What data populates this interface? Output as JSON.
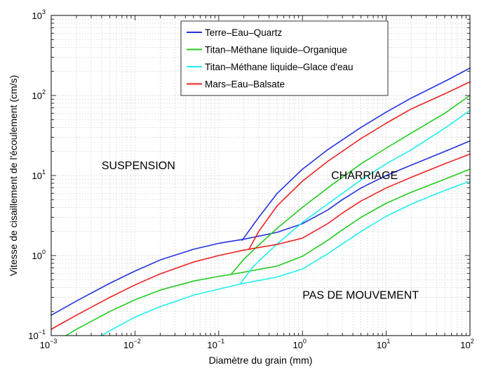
{
  "chart_data": {
    "type": "line",
    "title": "",
    "xlabel": "Diamètre du grain (mm)",
    "ylabel": "Vitesse de cisaillement de l'écoulement (cm/s)",
    "xscale": "log",
    "yscale": "log",
    "xlim": [
      0.001,
      100
    ],
    "ylim": [
      0.1,
      1000
    ],
    "grid": true,
    "legend_position": "top-center",
    "x_tick_labels": [
      {
        "base": "10",
        "exp": "−3"
      },
      {
        "base": "10",
        "exp": "−2"
      },
      {
        "base": "10",
        "exp": "−1"
      },
      {
        "base": "10",
        "exp": "0"
      },
      {
        "base": "10",
        "exp": "1"
      },
      {
        "base": "10",
        "exp": "2"
      }
    ],
    "y_tick_labels": [
      {
        "base": "10",
        "exp": "−1"
      },
      {
        "base": "10",
        "exp": "0"
      },
      {
        "base": "10",
        "exp": "1"
      },
      {
        "base": "10",
        "exp": "2"
      },
      {
        "base": "10",
        "exp": "3"
      }
    ],
    "annotations": [
      {
        "text": "SUSPENSION",
        "x": 0.004,
        "y": 12
      },
      {
        "text": "CHARRIAGE",
        "x": 2.2,
        "y": 9
      },
      {
        "text": "PAS DE MOUVEMENT",
        "x": 1.0,
        "y": 0.29
      }
    ],
    "series": [
      {
        "name": "Terre–Eau–Quartz",
        "color": "#2233dd",
        "segments": [
          {
            "x": [
              0.001,
              0.002,
              0.005,
              0.01,
              0.02,
              0.05,
              0.1,
              0.2,
              0.5,
              1.0,
              2,
              3,
              5,
              10,
              20,
              50,
              100
            ],
            "y": [
              0.18,
              0.27,
              0.45,
              0.64,
              0.88,
              1.2,
              1.42,
              1.6,
              1.95,
              2.5,
              3.7,
              5.0,
              7.0,
              10,
              13.5,
              20,
              27
            ]
          },
          {
            "x": [
              0.19,
              0.3,
              0.5,
              1.0,
              2,
              5,
              10,
              20,
              50,
              100
            ],
            "y": [
              1.55,
              3.0,
              6.0,
              12,
              21,
              40,
              62,
              93,
              150,
              220
            ]
          }
        ]
      },
      {
        "name": "Titan–Méthane liquide–Organique",
        "color": "#22cc22",
        "segments": [
          {
            "x": [
              0.0015,
              0.002,
              0.005,
              0.01,
              0.02,
              0.05,
              0.1,
              0.14,
              0.2,
              0.5,
              1.0,
              2,
              3,
              5,
              10,
              20,
              50,
              100
            ],
            "y": [
              0.1,
              0.12,
              0.2,
              0.28,
              0.37,
              0.48,
              0.55,
              0.58,
              0.62,
              0.74,
              0.98,
              1.55,
              2.1,
              3.0,
              4.5,
              6.2,
              9.0,
              12
            ]
          },
          {
            "x": [
              0.14,
              0.2,
              0.3,
              0.5,
              1.0,
              2,
              5,
              10,
              20,
              50,
              100
            ],
            "y": [
              0.58,
              0.9,
              1.35,
              2.2,
              4.0,
              7.0,
              14,
              22,
              34,
              60,
              100
            ]
          }
        ]
      },
      {
        "name": "Titan–Méthane liquide–Glace d'eau",
        "color": "#22eeee",
        "segments": [
          {
            "x": [
              0.004,
              0.005,
              0.01,
              0.02,
              0.05,
              0.1,
              0.18,
              0.2,
              0.5,
              1.0,
              2,
              3,
              5,
              10,
              20,
              50,
              100
            ],
            "y": [
              0.1,
              0.115,
              0.17,
              0.23,
              0.32,
              0.38,
              0.44,
              0.45,
              0.54,
              0.68,
              1.05,
              1.4,
              2.0,
              3.1,
              4.4,
              6.5,
              8.5
            ]
          },
          {
            "x": [
              0.18,
              0.25,
              0.3,
              0.5,
              1.0,
              2,
              5,
              10,
              20,
              50,
              100
            ],
            "y": [
              0.44,
              0.7,
              0.85,
              1.4,
              2.6,
              4.4,
              8.8,
              14,
              21,
              39,
              65
            ]
          }
        ]
      },
      {
        "name": "Mars–Eau–Balsate",
        "color": "#ee2222",
        "segments": [
          {
            "x": [
              0.001,
              0.002,
              0.005,
              0.01,
              0.02,
              0.05,
              0.1,
              0.2,
              0.5,
              1.0,
              2,
              3,
              5,
              10,
              20,
              50,
              100
            ],
            "y": [
              0.12,
              0.18,
              0.3,
              0.43,
              0.59,
              0.83,
              1.0,
              1.17,
              1.38,
              1.65,
              2.5,
              3.4,
              4.8,
              7.0,
              9.5,
              14,
              18.5
            ]
          },
          {
            "x": [
              0.23,
              0.3,
              0.5,
              1.0,
              2,
              5,
              10,
              20,
              50,
              100
            ],
            "y": [
              1.2,
              2.0,
              4.2,
              8.5,
              15,
              29,
              45,
              68,
              105,
              148
            ]
          }
        ]
      }
    ]
  }
}
